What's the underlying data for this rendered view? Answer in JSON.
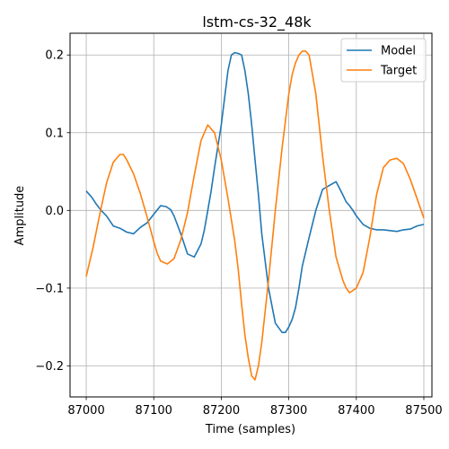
{
  "chart_data": {
    "type": "line",
    "title": "lstm-cs-32_48k",
    "xlabel": "Time (samples)",
    "ylabel": "Amplitude",
    "xlim": [
      86976,
      87512
    ],
    "ylim": [
      -0.24,
      0.228
    ],
    "xticks": [
      87000,
      87100,
      87200,
      87300,
      87400,
      87500
    ],
    "yticks": [
      -0.2,
      -0.1,
      0.0,
      0.1,
      0.2
    ],
    "ytick_labels": [
      "−0.2",
      "−0.1",
      "0.0",
      "0.1",
      "0.2"
    ],
    "grid": true,
    "legend_position": "top-right",
    "series": [
      {
        "name": "Model",
        "color": "#1f77b4",
        "x": [
          87000,
          87008,
          87015,
          87022,
          87030,
          87040,
          87050,
          87060,
          87070,
          87080,
          87090,
          87100,
          87110,
          87118,
          87125,
          87130,
          87140,
          87150,
          87160,
          87170,
          87175,
          87180,
          87185,
          87190,
          87200,
          87210,
          87215,
          87220,
          87225,
          87230,
          87235,
          87240,
          87245,
          87250,
          87255,
          87260,
          87270,
          87280,
          87290,
          87295,
          87300,
          87305,
          87310,
          87315,
          87320,
          87330,
          87340,
          87350,
          87360,
          87370,
          87380,
          87385,
          87390,
          87395,
          87400,
          87410,
          87420,
          87430,
          87440,
          87450,
          87460,
          87470,
          87480,
          87490,
          87500
        ],
        "y": [
          0.025,
          0.017,
          0.008,
          0.0,
          -0.007,
          -0.02,
          -0.023,
          -0.028,
          -0.03,
          -0.022,
          -0.016,
          -0.005,
          0.006,
          0.005,
          0.001,
          -0.007,
          -0.03,
          -0.056,
          -0.06,
          -0.043,
          -0.025,
          0.0,
          0.025,
          0.055,
          0.11,
          0.18,
          0.2,
          0.203,
          0.202,
          0.2,
          0.18,
          0.15,
          0.11,
          0.065,
          0.02,
          -0.03,
          -0.1,
          -0.145,
          -0.157,
          -0.157,
          -0.15,
          -0.14,
          -0.125,
          -0.1,
          -0.072,
          -0.035,
          0.0,
          0.027,
          0.032,
          0.037,
          0.02,
          0.011,
          0.006,
          0.0,
          -0.007,
          -0.018,
          -0.023,
          -0.025,
          -0.025,
          -0.026,
          -0.027,
          -0.025,
          -0.024,
          -0.02,
          -0.018
        ]
      },
      {
        "name": "Target",
        "color": "#ff7f0e",
        "x": [
          87000,
          87010,
          87020,
          87030,
          87040,
          87050,
          87055,
          87060,
          87070,
          87080,
          87090,
          87100,
          87105,
          87110,
          87120,
          87130,
          87140,
          87150,
          87160,
          87170,
          87175,
          87180,
          87190,
          87200,
          87210,
          87220,
          87225,
          87230,
          87235,
          87240,
          87245,
          87250,
          87255,
          87260,
          87270,
          87280,
          87290,
          87300,
          87305,
          87310,
          87315,
          87320,
          87325,
          87330,
          87340,
          87350,
          87360,
          87370,
          87380,
          87385,
          87390,
          87400,
          87410,
          87420,
          87430,
          87440,
          87450,
          87460,
          87470,
          87480,
          87490,
          87500
        ],
        "y": [
          -0.085,
          -0.048,
          -0.005,
          0.035,
          0.062,
          0.072,
          0.072,
          0.065,
          0.047,
          0.022,
          -0.008,
          -0.04,
          -0.055,
          -0.065,
          -0.069,
          -0.062,
          -0.038,
          -0.003,
          0.045,
          0.09,
          0.1,
          0.11,
          0.1,
          0.065,
          0.015,
          -0.04,
          -0.075,
          -0.12,
          -0.16,
          -0.19,
          -0.213,
          -0.218,
          -0.2,
          -0.17,
          -0.09,
          0.0,
          0.08,
          0.15,
          0.175,
          0.19,
          0.2,
          0.205,
          0.205,
          0.2,
          0.15,
          0.07,
          0.0,
          -0.06,
          -0.09,
          -0.1,
          -0.106,
          -0.1,
          -0.08,
          -0.035,
          0.02,
          0.055,
          0.065,
          0.067,
          0.06,
          0.04,
          0.015,
          -0.01
        ]
      }
    ]
  }
}
